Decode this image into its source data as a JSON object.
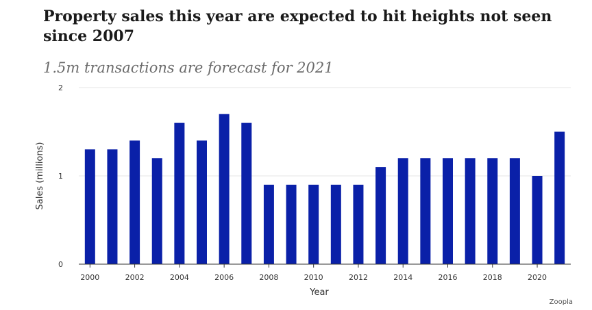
{
  "title": "Property sales this year are expected to hit heights not seen since 2007",
  "subtitle": "1.5m transactions are forecast for 2021",
  "source": "Zoopla",
  "chart_data": {
    "type": "bar",
    "x": [
      2000,
      2001,
      2002,
      2003,
      2004,
      2005,
      2006,
      2007,
      2008,
      2009,
      2010,
      2011,
      2012,
      2013,
      2014,
      2015,
      2016,
      2017,
      2018,
      2019,
      2020,
      2021
    ],
    "values": [
      1.3,
      1.3,
      1.4,
      1.2,
      1.6,
      1.4,
      1.7,
      1.6,
      0.9,
      0.9,
      0.9,
      0.9,
      0.9,
      1.1,
      1.2,
      1.2,
      1.2,
      1.2,
      1.2,
      1.2,
      1.0,
      1.5
    ],
    "xticks": [
      "2000",
      "2002",
      "2004",
      "2006",
      "2008",
      "2010",
      "2012",
      "2014",
      "2016",
      "2018",
      "2020"
    ],
    "yticks": [
      "0",
      "1",
      "2"
    ],
    "xlabel": "Year",
    "ylabel": "Sales (millions)",
    "ylim": [
      0,
      2
    ],
    "grid": true,
    "bar_color": "#0a20a8",
    "grid_color": "#e6e6e6",
    "axis_color": "#333333"
  }
}
